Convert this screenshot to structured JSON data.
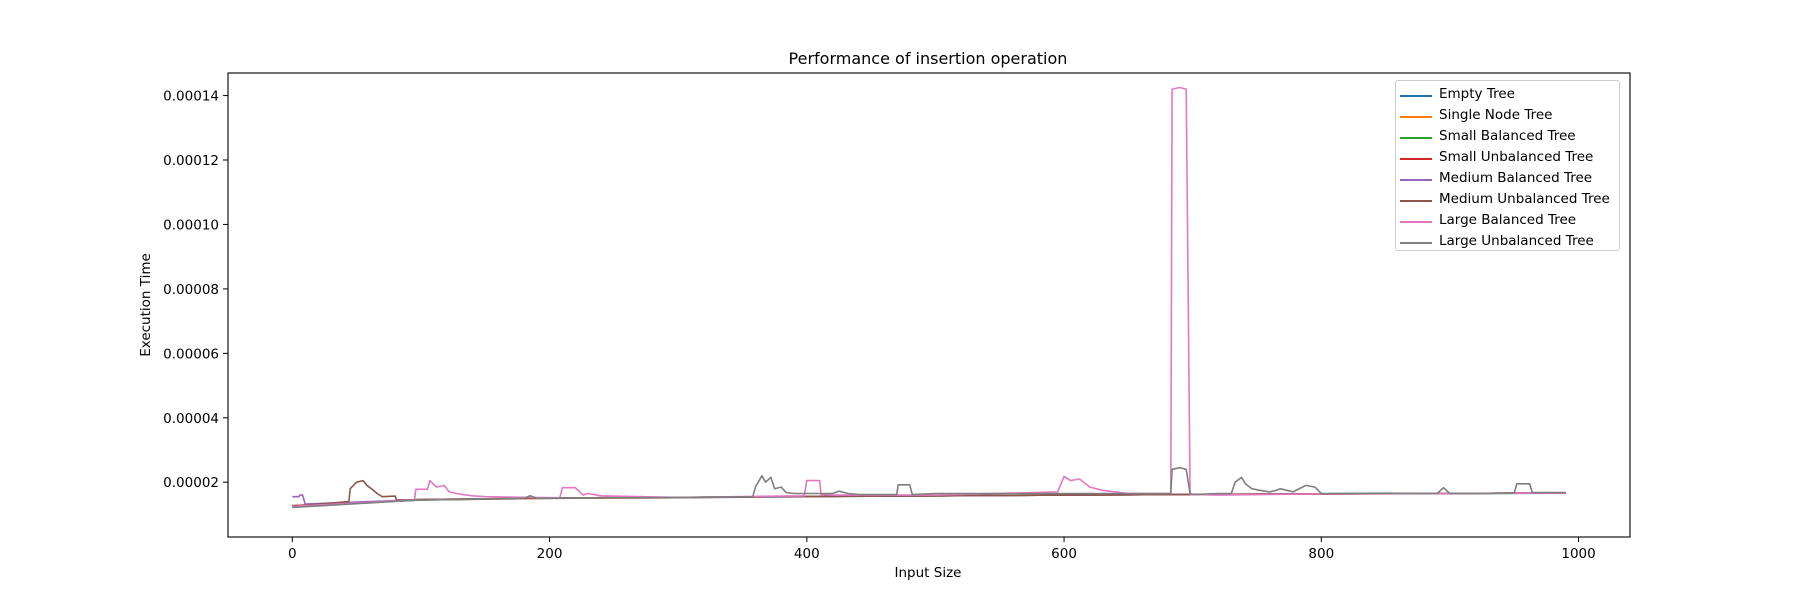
{
  "chart_data": {
    "type": "line",
    "title": "Performance of insertion operation",
    "xlabel": "Input Size",
    "ylabel": "Execution Time",
    "xlim": [
      -50,
      1040
    ],
    "ylim": [
      3e-06,
      0.000147
    ],
    "xticks": [
      0,
      200,
      400,
      600,
      800,
      1000
    ],
    "xtick_labels": [
      "0",
      "200",
      "400",
      "600",
      "800",
      "1000"
    ],
    "yticks": [
      2e-05,
      4e-05,
      6e-05,
      8e-05,
      0.0001,
      0.00012,
      0.00014
    ],
    "ytick_labels": [
      "0.00002",
      "0.00004",
      "0.00006",
      "0.00008",
      "0.00010",
      "0.00012",
      "0.00014"
    ],
    "grid": false,
    "legend_position": "top-right",
    "series": [
      {
        "name": "Empty Tree",
        "color": "#1f77b4",
        "x": [
          0,
          100,
          200,
          300,
          400,
          500,
          600,
          700,
          800,
          900,
          990
        ],
        "y": [
          1.25e-05,
          1.45e-05,
          1.5e-05,
          1.52e-05,
          1.55e-05,
          1.58e-05,
          1.6e-05,
          1.62e-05,
          1.63e-05,
          1.65e-05,
          1.66e-05
        ]
      },
      {
        "name": "Single Node Tree",
        "color": "#ff7f0e",
        "x": [
          0,
          100,
          200,
          300,
          400,
          500,
          600,
          700,
          800,
          900,
          990
        ],
        "y": [
          1.26e-05,
          1.45e-05,
          1.5e-05,
          1.52e-05,
          1.56e-05,
          1.58e-05,
          1.6e-05,
          1.62e-05,
          1.63e-05,
          1.65e-05,
          1.67e-05
        ]
      },
      {
        "name": "Small Balanced Tree",
        "color": "#2ca02c",
        "x": [
          0,
          100,
          200,
          300,
          400,
          500,
          600,
          700,
          800,
          900,
          990
        ],
        "y": [
          1.27e-05,
          1.45e-05,
          1.51e-05,
          1.53e-05,
          1.56e-05,
          1.58e-05,
          1.6e-05,
          1.62e-05,
          1.64e-05,
          1.65e-05,
          1.67e-05
        ]
      },
      {
        "name": "Small Unbalanced Tree",
        "color": "#d62728",
        "x": [
          0,
          100,
          200,
          300,
          400,
          500,
          600,
          700,
          800,
          900,
          990
        ],
        "y": [
          1.27e-05,
          1.46e-05,
          1.51e-05,
          1.53e-05,
          1.56e-05,
          1.58e-05,
          1.6e-05,
          1.62e-05,
          1.64e-05,
          1.65e-05,
          1.67e-05
        ]
      },
      {
        "name": "Medium Balanced Tree",
        "color": "#9467bd",
        "x": [
          0,
          5,
          6,
          8,
          10,
          100,
          200,
          300,
          400,
          500,
          600,
          700,
          800,
          900,
          990
        ],
        "y": [
          1.55e-05,
          1.55e-05,
          1.6e-05,
          1.6e-05,
          1.32e-05,
          1.46e-05,
          1.51e-05,
          1.53e-05,
          1.56e-05,
          1.58e-05,
          1.6e-05,
          1.62e-05,
          1.64e-05,
          1.65e-05,
          1.67e-05
        ]
      },
      {
        "name": "Medium Unbalanced Tree",
        "color": "#8c564b",
        "x": [
          0,
          44,
          45,
          50,
          55,
          58,
          62,
          66,
          70,
          80,
          81,
          90,
          100,
          200,
          300,
          400,
          500,
          600,
          700,
          800,
          900,
          990
        ],
        "y": [
          1.25e-05,
          1.4e-05,
          1.8e-05,
          2e-05,
          2.05e-05,
          1.9e-05,
          1.78e-05,
          1.65e-05,
          1.55e-05,
          1.57e-05,
          1.45e-05,
          1.45e-05,
          1.46e-05,
          1.51e-05,
          1.53e-05,
          1.56e-05,
          1.58e-05,
          1.6e-05,
          1.62e-05,
          1.64e-05,
          1.65e-05,
          1.67e-05
        ]
      },
      {
        "name": "Large Balanced Tree",
        "color": "#e377c2",
        "x": [
          0,
          95,
          96,
          105,
          107,
          112,
          118,
          122,
          130,
          140,
          150,
          200,
          208,
          210,
          220,
          226,
          230,
          240,
          300,
          398,
          400,
          410,
          411,
          420,
          500,
          595,
          600,
          605,
          612,
          620,
          630,
          640,
          650,
          683,
          684,
          690,
          695,
          698,
          700,
          720,
          800,
          900,
          990
        ],
        "y": [
          1.25e-05,
          1.45e-05,
          1.78e-05,
          1.78e-05,
          2.05e-05,
          1.85e-05,
          1.9e-05,
          1.7e-05,
          1.63e-05,
          1.58e-05,
          1.55e-05,
          1.52e-05,
          1.52e-05,
          1.83e-05,
          1.83e-05,
          1.6e-05,
          1.65e-05,
          1.58e-05,
          1.53e-05,
          1.58e-05,
          2.05e-05,
          2.05e-05,
          1.62e-05,
          1.6e-05,
          1.6e-05,
          1.7e-05,
          2.18e-05,
          2.05e-05,
          2.1e-05,
          1.85e-05,
          1.75e-05,
          1.7e-05,
          1.65e-05,
          1.65e-05,
          0.000142,
          0.0001425,
          0.000142,
          1.6e-05,
          1.62e-05,
          1.6e-05,
          1.64e-05,
          1.65e-05,
          1.67e-05
        ]
      },
      {
        "name": "Large Unbalanced Tree",
        "color": "#7f7f7f",
        "x": [
          0,
          100,
          180,
          185,
          190,
          300,
          358,
          360,
          365,
          368,
          372,
          375,
          380,
          384,
          390,
          420,
          425,
          432,
          440,
          470,
          471,
          480,
          482,
          500,
          683,
          684,
          690,
          695,
          698,
          700,
          720,
          730,
          733,
          738,
          741,
          746,
          752,
          760,
          765,
          768,
          778,
          788,
          795,
          800,
          850,
          890,
          895,
          900,
          950,
          952,
          962,
          964,
          980,
          990
        ],
        "y": [
          1.22e-05,
          1.45e-05,
          1.5e-05,
          1.58e-05,
          1.5e-05,
          1.53e-05,
          1.55e-05,
          1.85e-05,
          2.2e-05,
          2e-05,
          2.15e-05,
          1.8e-05,
          1.85e-05,
          1.68e-05,
          1.65e-05,
          1.65e-05,
          1.72e-05,
          1.65e-05,
          1.62e-05,
          1.62e-05,
          1.92e-05,
          1.92e-05,
          1.62e-05,
          1.65e-05,
          1.65e-05,
          2.4e-05,
          2.45e-05,
          2.4e-05,
          1.65e-05,
          1.62e-05,
          1.65e-05,
          1.65e-05,
          2e-05,
          2.15e-05,
          1.95e-05,
          1.8e-05,
          1.75e-05,
          1.7e-05,
          1.75e-05,
          1.8e-05,
          1.7e-05,
          1.9e-05,
          1.85e-05,
          1.65e-05,
          1.66e-05,
          1.65e-05,
          1.83e-05,
          1.65e-05,
          1.66e-05,
          1.95e-05,
          1.95e-05,
          1.68e-05,
          1.68e-05,
          1.68e-05
        ]
      }
    ]
  }
}
